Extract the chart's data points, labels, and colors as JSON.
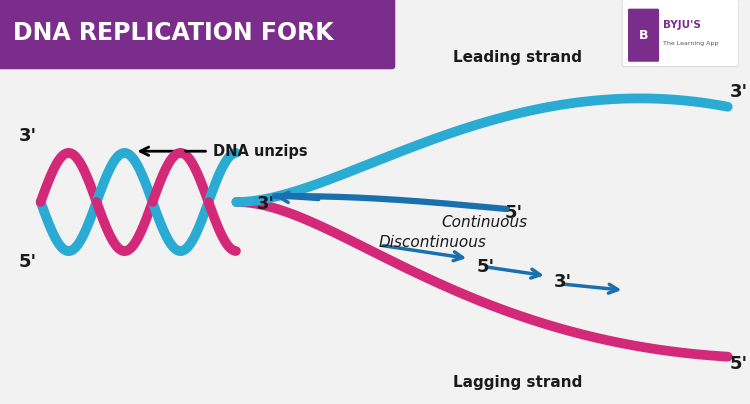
{
  "title": "DNA REPLICATION FORK",
  "title_bg_color": "#7B2D8B",
  "title_text_color": "#FFFFFF",
  "bg_color": "#F2F2F2",
  "cyan_color": "#29ABD4",
  "pink_color": "#D42878",
  "dark_blue_arrow": "#1A6FAF",
  "text_color_dark": "#1A1A1A",
  "leading_label": "Leading strand",
  "lagging_label": "Lagging strand",
  "continuous_label": "Continuous",
  "discontinuous_label": "Discontinuous",
  "dna_unzips_label": "DNA unzips"
}
